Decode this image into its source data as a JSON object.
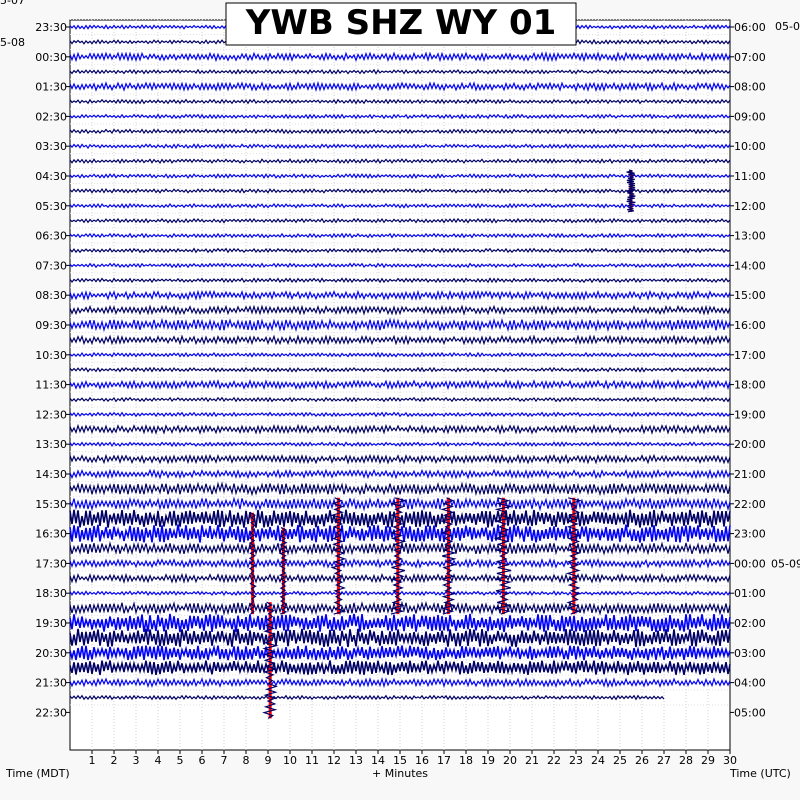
{
  "chart_data": {
    "type": "line",
    "title": "YWB SHZ WY 01",
    "xlabel": "+ Minutes",
    "left_axis_label": "Time (MDT)",
    "right_axis_label": "Time (UTC)",
    "x_range": [
      0,
      30
    ],
    "x_ticks": [
      1,
      2,
      3,
      4,
      5,
      6,
      7,
      8,
      9,
      10,
      11,
      12,
      13,
      14,
      15,
      16,
      17,
      18,
      19,
      20,
      21,
      22,
      23,
      24,
      25,
      26,
      27,
      28,
      29,
      30
    ],
    "grid": true,
    "trace_colors": [
      "#0000ff",
      "#000066"
    ],
    "event_color": "#ff0000",
    "date_labels_left": [
      {
        "text": "5-07",
        "row": -2
      },
      {
        "text": "5-08",
        "row": 1
      }
    ],
    "date_labels_right": [
      {
        "text": "05-0",
        "row": -2
      },
      {
        "text": "05-09",
        "row": 36
      }
    ],
    "left_time_labels": [
      "23:30",
      "00:30",
      "01:30",
      "02:30",
      "03:30",
      "04:30",
      "05:30",
      "06:30",
      "07:30",
      "08:30",
      "09:30",
      "10:30",
      "11:30",
      "12:30",
      "13:30",
      "14:30",
      "15:30",
      "16:30",
      "17:30",
      "18:30",
      "19:30",
      "20:30",
      "21:30",
      "22:30"
    ],
    "right_time_labels": [
      "06:00",
      "07:00",
      "08:00",
      "09:00",
      "10:00",
      "11:00",
      "12:00",
      "13:00",
      "14:00",
      "15:00",
      "16:00",
      "17:00",
      "18:00",
      "19:00",
      "20:00",
      "21:00",
      "22:00",
      "23:00",
      "00:00",
      "01:00",
      "02:00",
      "03:00",
      "04:00",
      "05:00"
    ],
    "row_count": 46,
    "trace_end_minute_last_row": 27,
    "events": [
      {
        "minute": 25.5,
        "rows": [
          10,
          12
        ],
        "peak": 3
      },
      {
        "minute": 8.3,
        "rows": [
          33,
          39
        ],
        "peak": 2
      },
      {
        "minute": 9.7,
        "rows": [
          34,
          39
        ],
        "peak": 2
      },
      {
        "minute": 12.2,
        "rows": [
          32,
          39
        ],
        "peak": 4
      },
      {
        "minute": 14.9,
        "rows": [
          32,
          39
        ],
        "peak": 5
      },
      {
        "minute": 17.2,
        "rows": [
          32,
          39
        ],
        "peak": 4
      },
      {
        "minute": 19.7,
        "rows": [
          32,
          39
        ],
        "peak": 5
      },
      {
        "minute": 22.9,
        "rows": [
          32,
          39
        ],
        "peak": 4
      },
      {
        "minute": 9.1,
        "rows": [
          39,
          46
        ],
        "peak": 4
      }
    ],
    "noise_levels": [
      1,
      1,
      2,
      1,
      2,
      1,
      1,
      1,
      1,
      1,
      1,
      1,
      1,
      1,
      1,
      1,
      1,
      1,
      2,
      2,
      3,
      2,
      1,
      1,
      2,
      1,
      1,
      2,
      1,
      2,
      2,
      3,
      3,
      5,
      5,
      3,
      2,
      2,
      1,
      3,
      5,
      5,
      4,
      4,
      2,
      1
    ]
  }
}
